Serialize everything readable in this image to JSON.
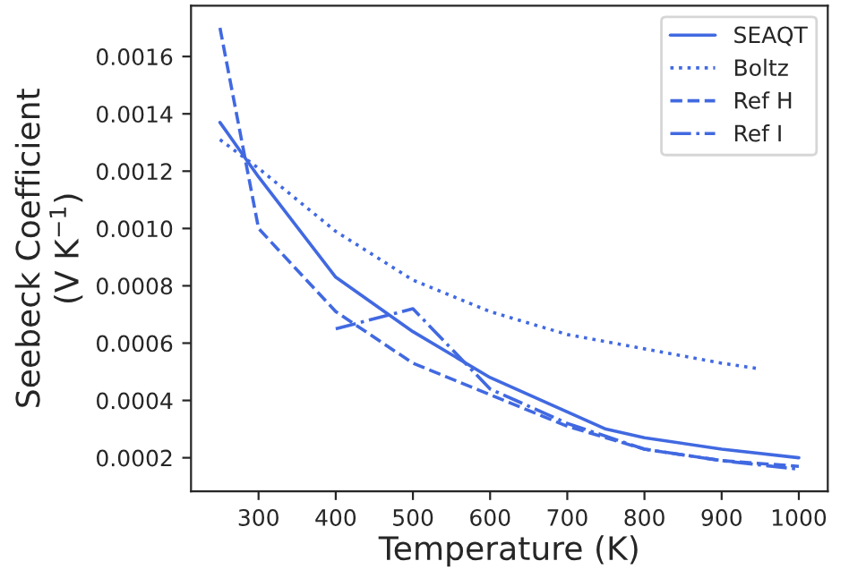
{
  "chart_data": {
    "type": "line",
    "xlabel": "Temperature (K)",
    "ylabel": "Seebeck Coefficient\n(V K$^{−1}$)",
    "xlim": [
      212.5,
      1037.5
    ],
    "xticks": [
      300,
      400,
      500,
      600,
      700,
      800,
      900,
      1000
    ],
    "ylim": [
      8.3e-05,
      0.001777
    ],
    "yticks": [
      {
        "value": 0.0002,
        "label": "0.0002"
      },
      {
        "value": 0.0004,
        "label": "0.0004"
      },
      {
        "value": 0.0006,
        "label": "0.0006"
      },
      {
        "value": 0.0008,
        "label": "0.0008"
      },
      {
        "value": 0.001,
        "label": "0.0010"
      },
      {
        "value": 0.0012,
        "label": "0.0012"
      },
      {
        "value": 0.0014,
        "label": "0.0014"
      },
      {
        "value": 0.0016,
        "label": "0.0016"
      }
    ],
    "legend": "top right",
    "grid": false,
    "series": [
      {
        "name": "SEAQT",
        "color": "#4169e1",
        "line_style": "solid",
        "x": [
          250,
          300,
          400,
          500,
          600,
          700,
          750,
          800,
          900,
          1000
        ],
        "values": [
          0.00137,
          0.00118,
          0.00083,
          0.00064,
          0.00048,
          0.00036,
          0.0003,
          0.00027,
          0.00023,
          0.0002
        ]
      },
      {
        "name": "Boltz",
        "color": "#4169e1",
        "line_style": "dotted",
        "x": [
          250,
          300,
          400,
          500,
          600,
          700,
          800,
          900,
          950
        ],
        "values": [
          0.00131,
          0.00121,
          0.00099,
          0.00082,
          0.00071,
          0.00063,
          0.00058,
          0.00053,
          0.00051
        ]
      },
      {
        "name": "Ref H",
        "color": "#4169e1",
        "line_style": "dashed",
        "x": [
          250,
          300,
          400,
          500,
          600,
          700,
          800,
          900,
          1000
        ],
        "values": [
          0.0017,
          0.001,
          0.00071,
          0.00053,
          0.00042,
          0.00031,
          0.00023,
          0.00019,
          0.00017
        ]
      },
      {
        "name": "Ref I",
        "color": "#4169e1",
        "line_style": "dashdot",
        "x": [
          400,
          500,
          600,
          700,
          800,
          900,
          1000
        ],
        "values": [
          0.00065,
          0.00072,
          0.00044,
          0.00032,
          0.00023,
          0.00019,
          0.00016
        ]
      }
    ]
  }
}
